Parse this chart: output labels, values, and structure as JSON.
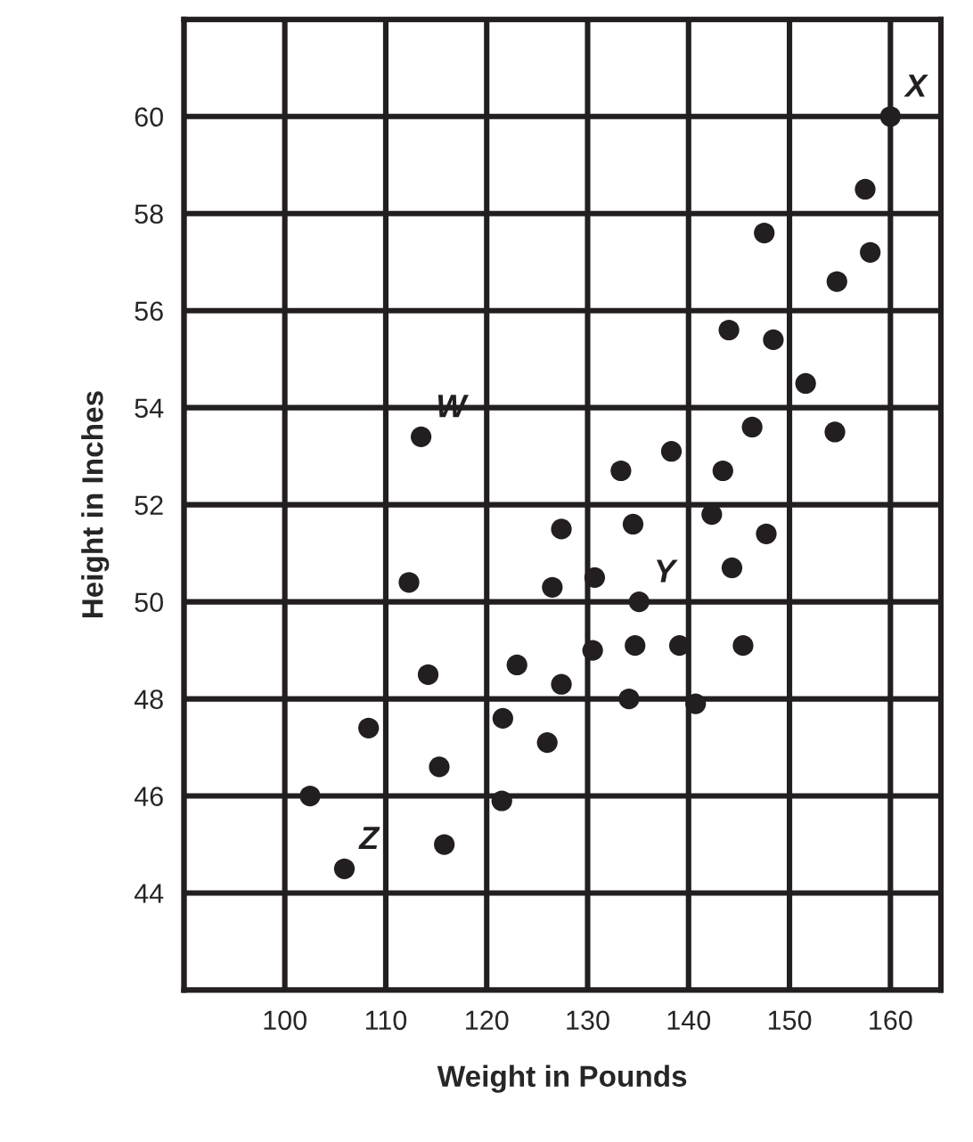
{
  "chart_data": {
    "type": "scatter",
    "xlabel": "Weight in Pounds",
    "ylabel": "Height in Inches",
    "series": [
      {
        "color": "#231f20",
        "x": [
          160,
          157.5,
          147.5,
          158,
          154.7,
          144,
          148.4,
          151.6,
          113.5,
          146.3,
          154.5,
          138.3,
          133.3,
          143.4,
          127.4,
          134.5,
          142.3,
          147.7,
          112.3,
          126.5,
          130.7,
          144.3,
          135.1,
          114.2,
          123,
          127.4,
          130.5,
          134.7,
          139.1,
          145.4,
          134.1,
          140.7,
          108.3,
          121.6,
          126,
          115.3,
          102.5,
          121.5,
          115.8,
          105.9
        ],
        "values": [
          60,
          58.5,
          57.6,
          57.2,
          56.6,
          55.6,
          55.4,
          54.5,
          53.4,
          53.6,
          53.5,
          53.1,
          52.7,
          52.7,
          51.5,
          51.6,
          51.8,
          51.4,
          50.4,
          50.3,
          50.5,
          50.7,
          50,
          48.5,
          48.7,
          48.3,
          49,
          49.1,
          49.1,
          49.1,
          48,
          47.9,
          47.4,
          47.6,
          47.1,
          46.6,
          46,
          45.9,
          45,
          44.5
        ]
      }
    ],
    "annotations": [
      {
        "text": "X",
        "x": 160,
        "y": 60
      },
      {
        "text": "W",
        "x": 113.5,
        "y": 53.4
      },
      {
        "text": "Y",
        "x": 135.1,
        "y": 50
      },
      {
        "text": "Z",
        "x": 105.9,
        "y": 44.5
      }
    ],
    "xlim": [
      90,
      165
    ],
    "ylim": [
      42,
      62
    ],
    "xticks": [
      {
        "value": 90,
        "label": null
      },
      100,
      110,
      120,
      130,
      140,
      150,
      160
    ],
    "yticks": [
      {
        "value": 42,
        "label": null
      },
      44,
      46,
      48,
      50,
      52,
      54,
      56,
      58,
      60,
      {
        "value": 62,
        "label": null
      }
    ],
    "grid": true,
    "marker": "circle"
  }
}
